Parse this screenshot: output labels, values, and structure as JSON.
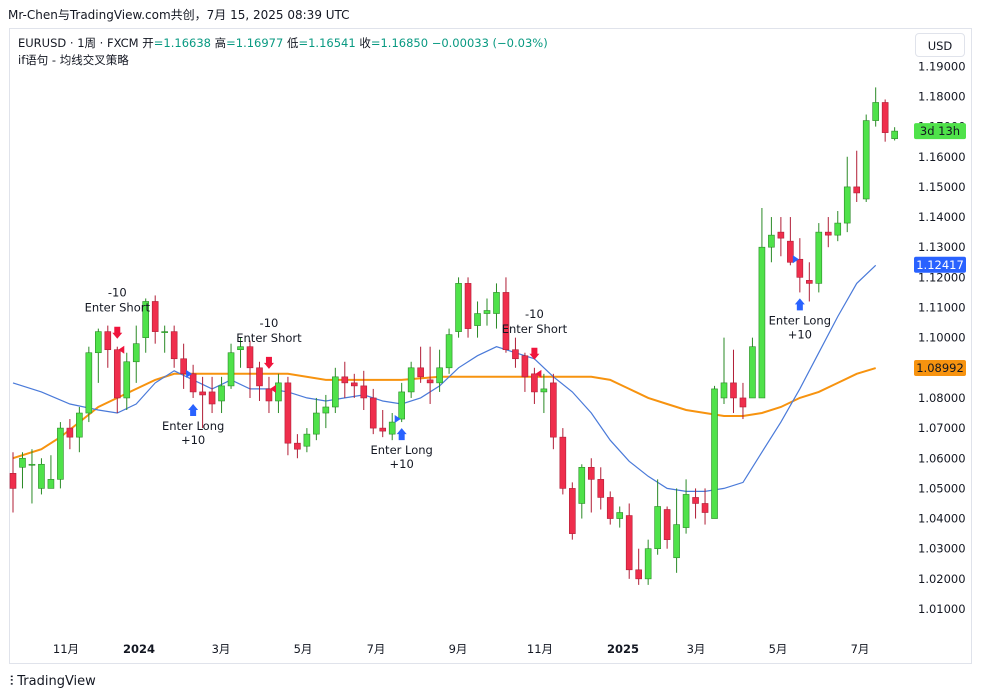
{
  "header": {
    "title": "Mr-Chen与TradingView.com共创，7月 15, 2025 08:39 UTC"
  },
  "legend": {
    "symbol": "EURUSD · 1周 · FXCM",
    "open_label": "开",
    "open": "=1.16638",
    "high_label": "高",
    "high": "=1.16977",
    "low_label": "低",
    "low": "=1.16541",
    "close_label": "收",
    "close": "=1.16850",
    "change": "−0.00033 (−0.03%)",
    "strategy": "if语句 - 均线交叉策略"
  },
  "currency_button": "USD",
  "footer": {
    "brand": "TradingView",
    "logo_icon": "tradingview-logo-icon"
  },
  "colors": {
    "up": "#4fe24a",
    "down": "#ef2e4c",
    "fast_ma": "#4a7ad9",
    "slow_ma": "#f7930f",
    "long_signal": "#2962ff",
    "short_signal": "#f0143c"
  },
  "chart_data": {
    "type": "candlestick",
    "yticks": [
      "1.01000",
      "1.02000",
      "1.03000",
      "1.04000",
      "1.05000",
      "1.06000",
      "1.07000",
      "1.08000",
      "1.09000",
      "1.10000",
      "1.11000",
      "1.12000",
      "1.13000",
      "1.14000",
      "1.15000",
      "1.16000",
      "1.17000",
      "1.18000",
      "1.19000"
    ],
    "ylim": [
      1.0,
      1.2
    ],
    "xticks": [
      "11月",
      "2024",
      "3月",
      "5月",
      "7月",
      "9月",
      "11月",
      "2025",
      "3月",
      "5月",
      "7月"
    ],
    "price_labels": [
      {
        "text": "3d 13h",
        "value": 1.1685,
        "color": "#4fe24a",
        "text_color": "#131722"
      },
      {
        "text": "1.12417",
        "value": 1.12417,
        "color": "#2962ff",
        "text_color": "#ffffff"
      },
      {
        "text": "1.08992",
        "value": 1.08992,
        "color": "#f7930f",
        "text_color": "#131722"
      }
    ],
    "candles": [
      [
        1.055,
        1.05,
        1.062,
        1.042
      ],
      [
        1.057,
        1.06,
        1.062,
        1.05
      ],
      [
        1.058,
        1.058,
        1.063,
        1.045
      ],
      [
        1.05,
        1.058,
        1.06,
        1.048
      ],
      [
        1.05,
        1.053,
        1.061,
        1.05
      ],
      [
        1.053,
        1.07,
        1.072,
        1.05
      ],
      [
        1.07,
        1.067,
        1.073,
        1.063
      ],
      [
        1.067,
        1.075,
        1.077,
        1.062
      ],
      [
        1.075,
        1.095,
        1.097,
        1.072
      ],
      [
        1.095,
        1.102,
        1.103,
        1.085
      ],
      [
        1.102,
        1.096,
        1.104,
        1.09
      ],
      [
        1.096,
        1.08,
        1.097,
        1.075
      ],
      [
        1.08,
        1.092,
        1.095,
        1.076
      ],
      [
        1.092,
        1.098,
        1.104,
        1.085
      ],
      [
        1.1,
        1.112,
        1.113,
        1.095
      ],
      [
        1.112,
        1.102,
        1.114,
        1.098
      ],
      [
        1.102,
        1.102,
        1.104,
        1.095
      ],
      [
        1.102,
        1.093,
        1.104,
        1.09
      ],
      [
        1.093,
        1.088,
        1.098,
        1.083
      ],
      [
        1.088,
        1.082,
        1.091,
        1.08
      ],
      [
        1.082,
        1.081,
        1.087,
        1.07
      ],
      [
        1.082,
        1.078,
        1.087,
        1.075
      ],
      [
        1.079,
        1.084,
        1.087,
        1.075
      ],
      [
        1.084,
        1.095,
        1.098,
        1.083
      ],
      [
        1.096,
        1.097,
        1.1,
        1.09
      ],
      [
        1.097,
        1.09,
        1.099,
        1.08
      ],
      [
        1.09,
        1.084,
        1.092,
        1.079
      ],
      [
        1.083,
        1.079,
        1.087,
        1.075
      ],
      [
        1.079,
        1.085,
        1.088,
        1.075
      ],
      [
        1.085,
        1.065,
        1.087,
        1.061
      ],
      [
        1.065,
        1.063,
        1.068,
        1.06
      ],
      [
        1.064,
        1.068,
        1.07,
        1.062
      ],
      [
        1.068,
        1.075,
        1.08,
        1.066
      ],
      [
        1.075,
        1.077,
        1.081,
        1.07
      ],
      [
        1.077,
        1.087,
        1.09,
        1.075
      ],
      [
        1.087,
        1.085,
        1.092,
        1.08
      ],
      [
        1.085,
        1.084,
        1.088,
        1.08
      ],
      [
        1.084,
        1.08,
        1.089,
        1.076
      ],
      [
        1.08,
        1.07,
        1.083,
        1.068
      ],
      [
        1.07,
        1.069,
        1.076,
        1.067
      ],
      [
        1.068,
        1.072,
        1.075,
        1.066
      ],
      [
        1.073,
        1.082,
        1.085,
        1.072
      ],
      [
        1.082,
        1.09,
        1.092,
        1.08
      ],
      [
        1.09,
        1.087,
        1.097,
        1.085
      ],
      [
        1.086,
        1.085,
        1.097,
        1.078
      ],
      [
        1.085,
        1.09,
        1.096,
        1.082
      ],
      [
        1.09,
        1.101,
        1.103,
        1.088
      ],
      [
        1.102,
        1.118,
        1.12,
        1.1
      ],
      [
        1.118,
        1.103,
        1.12,
        1.1
      ],
      [
        1.104,
        1.108,
        1.112,
        1.1
      ],
      [
        1.108,
        1.109,
        1.113,
        1.104
      ],
      [
        1.108,
        1.115,
        1.118,
        1.103
      ],
      [
        1.115,
        1.096,
        1.12,
        1.095
      ],
      [
        1.096,
        1.093,
        1.1,
        1.09
      ],
      [
        1.094,
        1.087,
        1.095,
        1.082
      ],
      [
        1.088,
        1.082,
        1.09,
        1.078
      ],
      [
        1.082,
        1.083,
        1.088,
        1.075
      ],
      [
        1.085,
        1.067,
        1.088,
        1.063
      ],
      [
        1.067,
        1.05,
        1.07,
        1.048
      ],
      [
        1.05,
        1.035,
        1.052,
        1.033
      ],
      [
        1.045,
        1.057,
        1.058,
        1.04
      ],
      [
        1.057,
        1.053,
        1.06,
        1.042
      ],
      [
        1.053,
        1.047,
        1.057,
        1.043
      ],
      [
        1.047,
        1.04,
        1.049,
        1.038
      ],
      [
        1.04,
        1.042,
        1.044,
        1.037
      ],
      [
        1.041,
        1.023,
        1.045,
        1.02
      ],
      [
        1.023,
        1.02,
        1.03,
        1.018
      ],
      [
        1.02,
        1.03,
        1.033,
        1.018
      ],
      [
        1.03,
        1.044,
        1.053,
        1.028
      ],
      [
        1.043,
        1.033,
        1.044,
        1.03
      ],
      [
        1.027,
        1.038,
        1.05,
        1.022
      ],
      [
        1.037,
        1.048,
        1.053,
        1.035
      ],
      [
        1.047,
        1.045,
        1.05,
        1.04
      ],
      [
        1.045,
        1.042,
        1.05,
        1.038
      ],
      [
        1.04,
        1.083,
        1.084,
        1.04
      ],
      [
        1.08,
        1.085,
        1.1,
        1.078
      ],
      [
        1.085,
        1.08,
        1.096,
        1.075
      ],
      [
        1.08,
        1.077,
        1.085,
        1.073
      ],
      [
        1.08,
        1.097,
        1.1,
        1.08
      ],
      [
        1.08,
        1.13,
        1.143,
        1.08
      ],
      [
        1.13,
        1.134,
        1.14,
        1.125
      ],
      [
        1.135,
        1.133,
        1.14,
        1.127
      ],
      [
        1.132,
        1.125,
        1.14,
        1.124
      ],
      [
        1.126,
        1.12,
        1.133,
        1.115
      ],
      [
        1.119,
        1.118,
        1.125,
        1.112
      ],
      [
        1.118,
        1.135,
        1.138,
        1.115
      ],
      [
        1.135,
        1.134,
        1.14,
        1.13
      ],
      [
        1.134,
        1.138,
        1.142,
        1.132
      ],
      [
        1.138,
        1.15,
        1.16,
        1.135
      ],
      [
        1.15,
        1.148,
        1.162,
        1.145
      ],
      [
        1.146,
        1.172,
        1.174,
        1.145
      ],
      [
        1.172,
        1.178,
        1.183,
        1.17
      ],
      [
        1.178,
        1.168,
        1.179,
        1.165
      ],
      [
        1.166,
        1.1685,
        1.1698,
        1.1654
      ]
    ],
    "fast_ma": [
      [
        0,
        1.085
      ],
      [
        3,
        1.082
      ],
      [
        6,
        1.078
      ],
      [
        9,
        1.076
      ],
      [
        11,
        1.075
      ],
      [
        13,
        1.078
      ],
      [
        15,
        1.085
      ],
      [
        17,
        1.089
      ],
      [
        19,
        1.086
      ],
      [
        21,
        1.083
      ],
      [
        23,
        1.086
      ],
      [
        25,
        1.083
      ],
      [
        27,
        1.083
      ],
      [
        29,
        1.082
      ],
      [
        31,
        1.08
      ],
      [
        33,
        1.079
      ],
      [
        35,
        1.08
      ],
      [
        37,
        1.081
      ],
      [
        39,
        1.079
      ],
      [
        41,
        1.078
      ],
      [
        43,
        1.08
      ],
      [
        45,
        1.084
      ],
      [
        47,
        1.09
      ],
      [
        49,
        1.094
      ],
      [
        51,
        1.097
      ],
      [
        53,
        1.095
      ],
      [
        55,
        1.093
      ],
      [
        57,
        1.087
      ],
      [
        59,
        1.082
      ],
      [
        61,
        1.075
      ],
      [
        63,
        1.066
      ],
      [
        65,
        1.059
      ],
      [
        67,
        1.054
      ],
      [
        69,
        1.05
      ],
      [
        71,
        1.049
      ],
      [
        73,
        1.049
      ],
      [
        75,
        1.05
      ],
      [
        77,
        1.052
      ],
      [
        79,
        1.062
      ],
      [
        81,
        1.072
      ],
      [
        83,
        1.083
      ],
      [
        85,
        1.095
      ],
      [
        87,
        1.107
      ],
      [
        89,
        1.118
      ],
      [
        91,
        1.124
      ]
    ],
    "slow_ma": [
      [
        0,
        1.06
      ],
      [
        3,
        1.063
      ],
      [
        5,
        1.067
      ],
      [
        7,
        1.072
      ],
      [
        9,
        1.077
      ],
      [
        11,
        1.08
      ],
      [
        13,
        1.083
      ],
      [
        15,
        1.086
      ],
      [
        17,
        1.088
      ],
      [
        19,
        1.088
      ],
      [
        21,
        1.088
      ],
      [
        25,
        1.088
      ],
      [
        29,
        1.088
      ],
      [
        33,
        1.086
      ],
      [
        37,
        1.086
      ],
      [
        41,
        1.086
      ],
      [
        45,
        1.087
      ],
      [
        49,
        1.087
      ],
      [
        53,
        1.087
      ],
      [
        57,
        1.087
      ],
      [
        59,
        1.087
      ],
      [
        61,
        1.087
      ],
      [
        63,
        1.086
      ],
      [
        65,
        1.083
      ],
      [
        67,
        1.08
      ],
      [
        69,
        1.078
      ],
      [
        71,
        1.076
      ],
      [
        73,
        1.075
      ],
      [
        75,
        1.074
      ],
      [
        77,
        1.074
      ],
      [
        79,
        1.075
      ],
      [
        81,
        1.077
      ],
      [
        83,
        1.08
      ],
      [
        85,
        1.082
      ],
      [
        87,
        1.085
      ],
      [
        89,
        1.088
      ],
      [
        91,
        1.0899
      ]
    ],
    "signals": [
      {
        "type": "short",
        "bar": 11,
        "text": "Enter Short",
        "value_text": "-10"
      },
      {
        "type": "long",
        "bar": 19,
        "text": "Enter Long",
        "value_text": "+10"
      },
      {
        "type": "short",
        "bar": 27,
        "text": "Enter Short",
        "value_text": "-10"
      },
      {
        "type": "long",
        "bar": 41,
        "text": "Enter Long",
        "value_text": "+10"
      },
      {
        "type": "short",
        "bar": 55,
        "text": "Enter Short",
        "value_text": "-10"
      },
      {
        "type": "long",
        "bar": 83,
        "text": "Enter Long",
        "value_text": "+10"
      }
    ]
  }
}
